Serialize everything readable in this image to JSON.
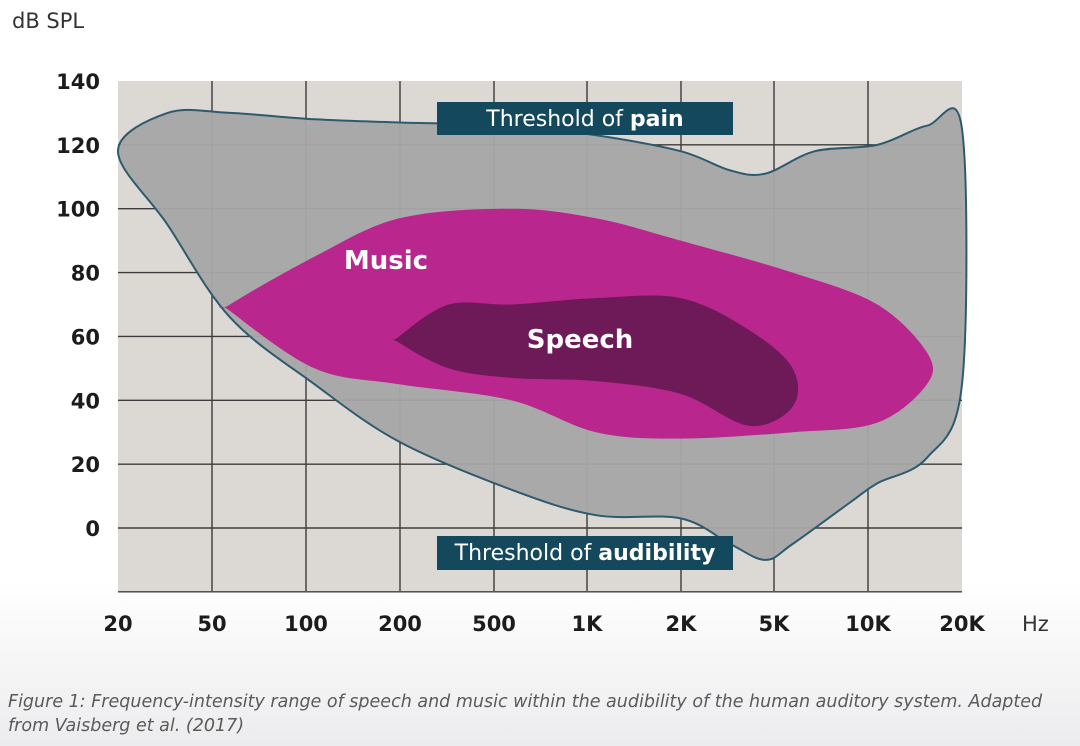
{
  "chart_data": {
    "type": "area",
    "y_axis_label": "dB SPL",
    "x_axis_unit": "Hz",
    "x_scale": "log",
    "x_ticks": [
      "20",
      "50",
      "100",
      "200",
      "500",
      "1K",
      "2K",
      "5K",
      "10K",
      "20K"
    ],
    "x_tick_values": [
      20,
      50,
      100,
      200,
      500,
      1000,
      2000,
      5000,
      10000,
      20000
    ],
    "y_ticks": [
      "140",
      "120",
      "100",
      "80",
      "60",
      "40",
      "20",
      "0"
    ],
    "y_tick_values": [
      140,
      120,
      100,
      80,
      60,
      40,
      20,
      0
    ],
    "ylim": [
      -20,
      140
    ],
    "grid": true,
    "regions": [
      {
        "name": "Audible range",
        "label": "",
        "color": "#a6a6a6",
        "upper": [
          [
            20,
            118
          ],
          [
            30,
            130
          ],
          [
            50,
            130
          ],
          [
            100,
            128
          ],
          [
            200,
            127
          ],
          [
            500,
            126
          ],
          [
            1000,
            123
          ],
          [
            2000,
            118
          ],
          [
            3000,
            112
          ],
          [
            4000,
            111
          ],
          [
            6000,
            118
          ],
          [
            10000,
            120
          ],
          [
            15000,
            126
          ],
          [
            20000,
            125
          ]
        ],
        "lower": [
          [
            20,
            118
          ],
          [
            30,
            95
          ],
          [
            50,
            66
          ],
          [
            100,
            45
          ],
          [
            200,
            27
          ],
          [
            500,
            12
          ],
          [
            1000,
            4
          ],
          [
            2000,
            3
          ],
          [
            3000,
            -5
          ],
          [
            4000,
            -10
          ],
          [
            5000,
            -5
          ],
          [
            8000,
            8
          ],
          [
            10000,
            14
          ],
          [
            15000,
            22
          ],
          [
            20000,
            45
          ]
        ]
      },
      {
        "name": "Music",
        "label": "Music",
        "color": "#b8268e",
        "upper": [
          [
            50,
            70
          ],
          [
            100,
            85
          ],
          [
            200,
            97
          ],
          [
            500,
            100
          ],
          [
            1000,
            97
          ],
          [
            2000,
            90
          ],
          [
            5000,
            80
          ],
          [
            10000,
            70
          ],
          [
            15000,
            55
          ]
        ],
        "lower": [
          [
            50,
            68
          ],
          [
            100,
            50
          ],
          [
            200,
            45
          ],
          [
            500,
            40
          ],
          [
            1000,
            30
          ],
          [
            2000,
            28
          ],
          [
            5000,
            30
          ],
          [
            10000,
            33
          ],
          [
            15000,
            45
          ]
        ]
      },
      {
        "name": "Speech",
        "label": "Speech",
        "color": "#6e1958",
        "upper": [
          [
            200,
            60
          ],
          [
            300,
            70
          ],
          [
            500,
            70
          ],
          [
            1000,
            72
          ],
          [
            2000,
            72
          ],
          [
            3500,
            62
          ],
          [
            5000,
            50
          ]
        ],
        "lower": [
          [
            200,
            58
          ],
          [
            300,
            50
          ],
          [
            500,
            47
          ],
          [
            1000,
            46
          ],
          [
            2000,
            42
          ],
          [
            3500,
            32
          ],
          [
            5000,
            38
          ]
        ]
      }
    ],
    "annotations": [
      {
        "id": "pain",
        "text_normal": "Threshold of ",
        "text_bold": "pain",
        "color": "#14485c"
      },
      {
        "id": "audibility",
        "text_normal": "Threshold of ",
        "text_bold": "audibility",
        "color": "#14485c"
      }
    ],
    "colors": {
      "plot_background": "#dcd8d3",
      "grid": "#3c3c3c",
      "outline": "#2e5a6e"
    }
  },
  "caption": "Figure 1: Frequency-intensity range of speech and music within the audibility of the human auditory system. Adapted from Vaisberg et al. (2017)"
}
